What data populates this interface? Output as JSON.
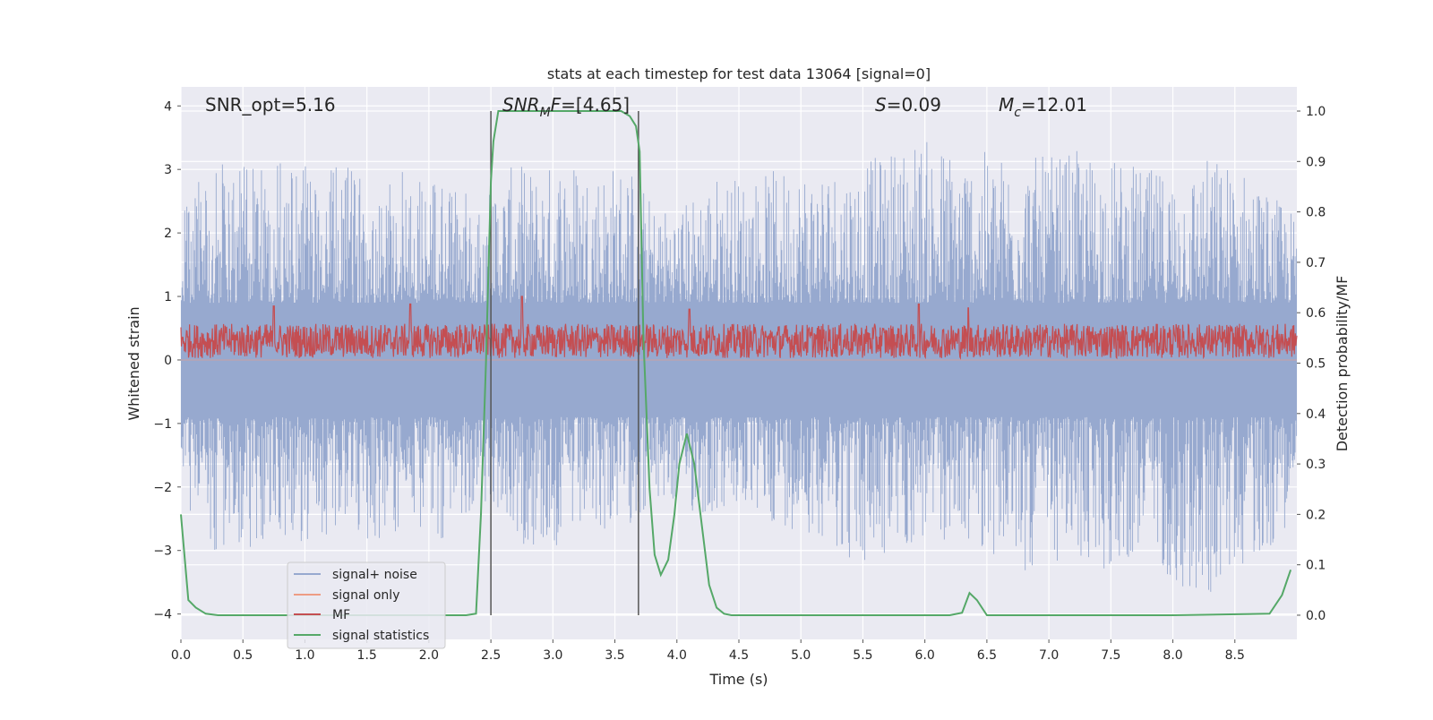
{
  "chart_data": {
    "type": "line",
    "title": "stats at each timestep for test data 13064 [signal=0]",
    "xlabel": "Time (s)",
    "ylabel": "Whitened strain",
    "ylabel_right": "Detection probability/MF",
    "xlim": [
      0.0,
      9.0
    ],
    "ylim": [
      -4.4,
      4.3
    ],
    "ylim_right": [
      -0.048,
      1.048
    ],
    "xticks": [
      "0.0",
      "0.5",
      "1.0",
      "1.5",
      "2.0",
      "2.5",
      "3.0",
      "3.5",
      "4.0",
      "4.5",
      "5.0",
      "5.5",
      "6.0",
      "6.5",
      "7.0",
      "7.5",
      "8.0",
      "8.5"
    ],
    "xtick_values": [
      0.0,
      0.5,
      1.0,
      1.5,
      2.0,
      2.5,
      3.0,
      3.5,
      4.0,
      4.5,
      5.0,
      5.5,
      6.0,
      6.5,
      7.0,
      7.5,
      8.0,
      8.5
    ],
    "yticks": [
      "−4",
      "−3",
      "−2",
      "−1",
      "0",
      "1",
      "2",
      "3",
      "4"
    ],
    "ytick_values": [
      -4,
      -3,
      -2,
      -1,
      0,
      1,
      2,
      3,
      4
    ],
    "yticks_right": [
      "0.0",
      "0.1",
      "0.2",
      "0.3",
      "0.4",
      "0.5",
      "0.6",
      "0.7",
      "0.8",
      "0.9",
      "1.0"
    ],
    "ytick_right_values": [
      0.0,
      0.1,
      0.2,
      0.3,
      0.4,
      0.5,
      0.6,
      0.7,
      0.8,
      0.9,
      1.0
    ],
    "grid": true,
    "legend_position": "lower-left",
    "annotations": {
      "snr_opt": "SNR_opt=5.16",
      "snr_mf": "=[4.65]",
      "snr_mf_symbol": "SNR",
      "snr_mf_sub": "M",
      "snr_mf_tail": "F",
      "s_symbol": "S",
      "s_value": "=0.09",
      "mc_symbol": "M",
      "mc_sub": "c",
      "mc_value": "=12.01"
    },
    "vertical_lines_x": [
      2.5,
      3.69
    ],
    "series": [
      {
        "name": "signal+ noise",
        "color": "#97a9cf",
        "axis": "left",
        "description_envelope_upper": [
          [
            0.0,
            2.3
          ],
          [
            0.2,
            3.0
          ],
          [
            0.45,
            3.2
          ],
          [
            0.7,
            3.0
          ],
          [
            0.9,
            3.25
          ],
          [
            1.1,
            2.9
          ],
          [
            1.3,
            3.1
          ],
          [
            1.5,
            2.9
          ],
          [
            1.8,
            3.15
          ],
          [
            2.1,
            2.9
          ],
          [
            2.4,
            2.6
          ],
          [
            2.7,
            3.1
          ],
          [
            2.9,
            3.0
          ],
          [
            3.1,
            3.3
          ],
          [
            3.3,
            3.1
          ],
          [
            3.6,
            3.15
          ],
          [
            3.8,
            2.5
          ],
          [
            4.0,
            2.4
          ],
          [
            4.3,
            2.95
          ],
          [
            4.6,
            2.9
          ],
          [
            5.0,
            3.1
          ],
          [
            5.5,
            3.1
          ],
          [
            5.6,
            3.2
          ],
          [
            5.9,
            3.55
          ],
          [
            6.1,
            3.45
          ],
          [
            6.4,
            3.3
          ],
          [
            6.7,
            3.25
          ],
          [
            7.0,
            3.2
          ],
          [
            7.2,
            3.3
          ],
          [
            7.5,
            3.2
          ],
          [
            7.8,
            3.0
          ],
          [
            8.1,
            3.0
          ],
          [
            8.3,
            3.25
          ],
          [
            8.6,
            3.0
          ],
          [
            8.8,
            2.6
          ],
          [
            9.0,
            2.3
          ]
        ],
        "description_envelope_lower": [
          [
            0.0,
            -2.0
          ],
          [
            0.2,
            -3.0
          ],
          [
            0.45,
            -3.1
          ],
          [
            0.7,
            -2.8
          ],
          [
            1.0,
            -3.0
          ],
          [
            1.3,
            -2.7
          ],
          [
            1.5,
            -2.9
          ],
          [
            1.8,
            -2.7
          ],
          [
            2.1,
            -2.9
          ],
          [
            2.4,
            -2.2
          ],
          [
            2.7,
            -2.9
          ],
          [
            3.0,
            -3.05
          ],
          [
            3.3,
            -2.8
          ],
          [
            3.6,
            -2.6
          ],
          [
            3.9,
            -2.3
          ],
          [
            4.2,
            -2.5
          ],
          [
            4.5,
            -2.4
          ],
          [
            4.8,
            -2.6
          ],
          [
            5.2,
            -2.8
          ],
          [
            5.5,
            -3.4
          ],
          [
            5.8,
            -3.0
          ],
          [
            6.1,
            -2.9
          ],
          [
            6.4,
            -2.9
          ],
          [
            6.8,
            -3.4
          ],
          [
            7.0,
            -3.2
          ],
          [
            7.5,
            -3.35
          ],
          [
            7.8,
            -3.0
          ],
          [
            8.2,
            -4.0
          ],
          [
            8.5,
            -3.3
          ],
          [
            8.8,
            -3.0
          ],
          [
            9.0,
            -2.3
          ]
        ]
      },
      {
        "name": "signal only",
        "color": "#ee9c84",
        "axis": "left",
        "values_note": "flat at 0"
      },
      {
        "name": "MF",
        "color": "#c44e52",
        "axis": "left",
        "center": 0.3,
        "band": [
          0.05,
          0.65
        ],
        "peaks": [
          [
            0.75,
            0.85
          ],
          [
            1.85,
            0.88
          ],
          [
            2.75,
            1.0
          ],
          [
            4.1,
            0.8
          ],
          [
            5.95,
            0.88
          ],
          [
            6.35,
            0.82
          ]
        ]
      },
      {
        "name": "signal statistics",
        "color": "#55a868",
        "axis": "right",
        "x": [
          0.0,
          0.06,
          0.12,
          0.2,
          0.3,
          0.5,
          1.0,
          1.5,
          2.0,
          2.3,
          2.38,
          2.42,
          2.46,
          2.5,
          2.52,
          2.56,
          2.6,
          3.0,
          3.4,
          3.55,
          3.62,
          3.67,
          3.7,
          3.73,
          3.78,
          3.82,
          3.87,
          3.93,
          3.98,
          4.02,
          4.08,
          4.14,
          4.2,
          4.26,
          4.32,
          4.38,
          4.44,
          4.5,
          5.0,
          6.0,
          6.2,
          6.3,
          6.36,
          6.42,
          6.5,
          6.6,
          7.0,
          8.0,
          8.78,
          8.88,
          8.95
        ],
        "y": [
          0.2,
          0.03,
          0.015,
          0.003,
          0.0,
          0.0,
          0.0,
          0.0,
          0.0,
          0.0,
          0.003,
          0.2,
          0.5,
          0.86,
          0.94,
          1.0,
          1.0,
          1.0,
          1.0,
          1.0,
          0.99,
          0.97,
          0.92,
          0.55,
          0.25,
          0.12,
          0.08,
          0.11,
          0.2,
          0.3,
          0.36,
          0.3,
          0.18,
          0.06,
          0.015,
          0.003,
          0.0,
          0.0,
          0.0,
          0.0,
          0.0,
          0.005,
          0.044,
          0.03,
          0.0,
          0.0,
          0.0,
          0.0,
          0.003,
          0.04,
          0.09
        ]
      }
    ]
  }
}
